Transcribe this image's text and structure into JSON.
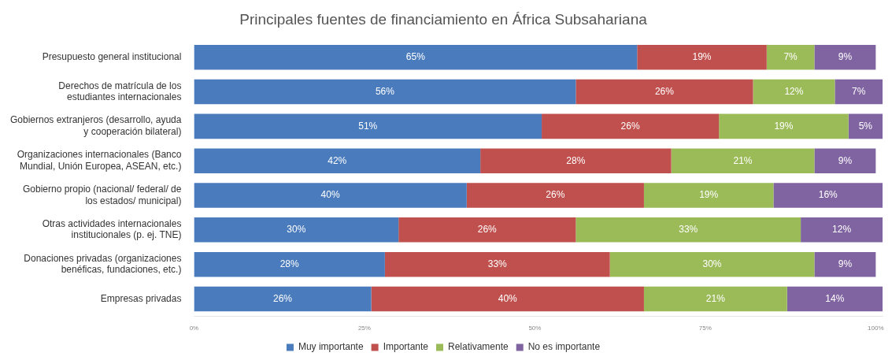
{
  "chart_data": {
    "type": "bar",
    "orientation": "horizontal",
    "stacked": true,
    "title": "Principales fuentes de financiamiento en África Subsahariana",
    "categories": [
      "Presupuesto general institucional",
      "Derechos de matrícula de los estudiantes internacionales",
      "Gobiernos extranjeros (desarrollo, ayuda y cooperación bilateral)",
      "Organizaciones internacionales (Banco Mundial, Unión Europea, ASEAN, etc.)",
      "Gobierno propio (nacional/ federal/ de los estados/ municipal)",
      "Otras actividades internacionales institucionales (p. ej. TNE)",
      "Donaciones privadas (organizaciones benéficas, fundaciones, etc.)",
      "Empresas privadas"
    ],
    "series": [
      {
        "name": "Muy importante",
        "color": "#4a7bbd",
        "values": [
          65,
          56,
          51,
          42,
          40,
          30,
          28,
          26
        ],
        "value_labels": [
          "65%",
          "56%",
          "51%",
          "42%",
          "40%",
          "30%",
          "28%",
          "26%"
        ]
      },
      {
        "name": "Importante",
        "color": "#c0504d",
        "values": [
          19,
          26,
          26,
          28,
          26,
          26,
          33,
          40
        ],
        "value_labels": [
          "19%",
          "26%",
          "26%",
          "28%",
          "26%",
          "26%",
          "33%",
          "40%"
        ]
      },
      {
        "name": "Relativamente",
        "color": "#9bbb59",
        "values": [
          7,
          12,
          19,
          21,
          19,
          33,
          30,
          21
        ],
        "value_labels": [
          "7%",
          "12%",
          "19%",
          "21%",
          "19%",
          "33%",
          "30%",
          "21%"
        ]
      },
      {
        "name": "No es importante",
        "color": "#8064a2",
        "values": [
          9,
          7,
          5,
          9,
          16,
          12,
          9,
          14
        ],
        "value_labels": [
          "9%",
          "7%",
          "5%",
          "9%",
          "16%",
          "12%",
          "9%",
          "14%"
        ]
      }
    ],
    "xlim": [
      0,
      101
    ],
    "xticks": [
      {
        "value": 0,
        "label": "0%"
      },
      {
        "value": 25,
        "label": "25%"
      },
      {
        "value": 50,
        "label": "50%"
      },
      {
        "value": 75,
        "label": "75%"
      },
      {
        "value": 100,
        "label": "100%"
      }
    ],
    "grid": false,
    "legend": "bottom"
  }
}
